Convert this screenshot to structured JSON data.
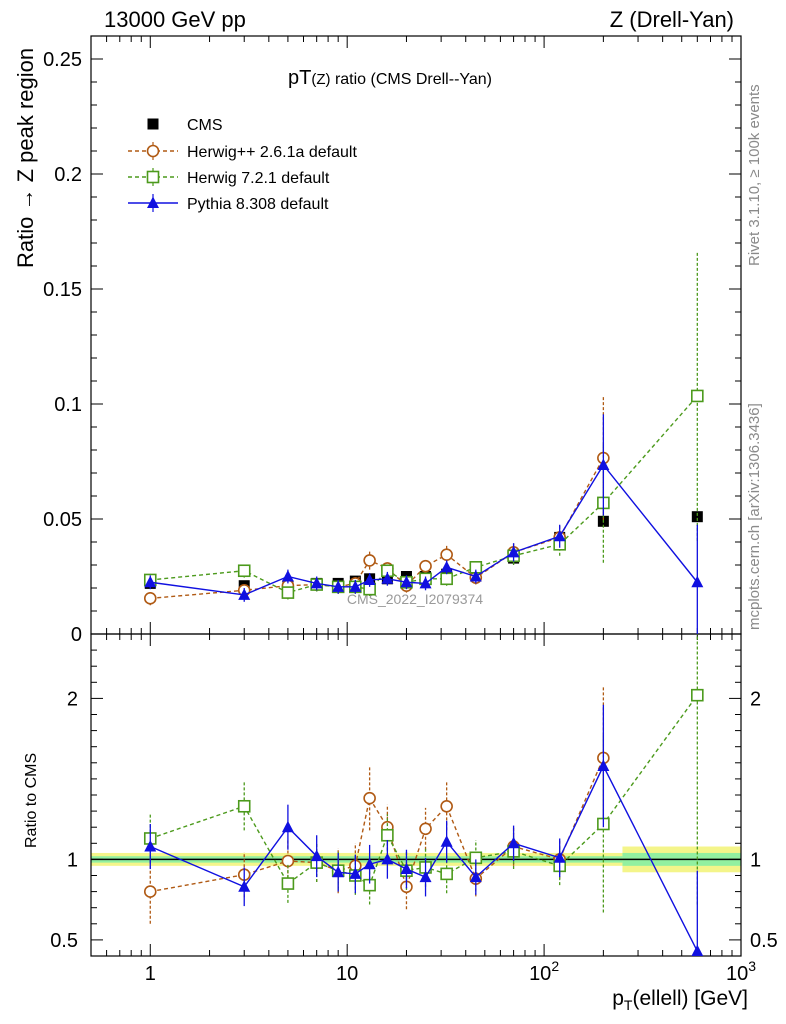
{
  "header": {
    "left": "13000 GeV pp",
    "right": "Z (Drell-Yan)"
  },
  "side_text": {
    "rivet": "Rivet 3.1.10, ≥ 100k events",
    "source": "mcplots.cern.ch [arXiv:1306.3436]"
  },
  "chart_data": {
    "type": "scatter",
    "title_main": "pT",
    "title_paren": "(Z)",
    "title_rest": " ratio (CMS Drell--Yan)",
    "watermark": "CMS_2022_I2079374",
    "xlabel_main": "p",
    "xlabel_sub": "T",
    "xlabel_rest": "(ellell) [GeV]",
    "ylabel_top": "Ratio → Z peak region",
    "ylabel_ratio": "Ratio to CMS",
    "xscale": "log",
    "xlim": [
      0.5,
      1000
    ],
    "ylim_top": [
      0,
      0.26
    ],
    "ylim_ratio": [
      0.4,
      2.4
    ],
    "x_ticks": [
      {
        "value": 1,
        "label": "1"
      },
      {
        "value": 10,
        "label": "10"
      },
      {
        "value": 100,
        "label": "10",
        "exp": "2"
      },
      {
        "value": 1000,
        "label": "10",
        "exp": "3"
      }
    ],
    "y_ticks_top": [
      {
        "value": 0,
        "label": "0"
      },
      {
        "value": 0.05,
        "label": "0.05"
      },
      {
        "value": 0.1,
        "label": "0.1"
      },
      {
        "value": 0.15,
        "label": "0.15"
      },
      {
        "value": 0.2,
        "label": "0.2"
      },
      {
        "value": 0.25,
        "label": "0.25"
      }
    ],
    "y_ticks_ratio": [
      {
        "value": 0.5,
        "label": "0.5"
      },
      {
        "value": 1,
        "label": "1"
      },
      {
        "value": 2,
        "label": "2"
      }
    ],
    "legend_position": "top-left",
    "series": [
      {
        "name": "CMS",
        "marker": "square-filled",
        "color": "#000000",
        "line": "none",
        "x": [
          1,
          3,
          5,
          7,
          9,
          11,
          13,
          16,
          20,
          25,
          32,
          45,
          70,
          120,
          200,
          600
        ],
        "y": [
          0.022,
          0.021,
          0.021,
          0.022,
          0.022,
          0.023,
          0.024,
          0.024,
          0.025,
          0.025,
          0.026,
          0.028,
          0.033,
          0.042,
          0.049,
          0.051
        ],
        "err": [
          0.002,
          0.002,
          0.002,
          0.002,
          0.002,
          0.002,
          0.002,
          0.002,
          0.002,
          0.002,
          0.002,
          0.002,
          0.002,
          0.002,
          0.002,
          0.002
        ],
        "ratio_band": [
          {
            "x0": 0.5,
            "x1": 250,
            "inner": 0.02,
            "outer": 0.04
          },
          {
            "x0": 250,
            "x1": 1000,
            "inner": 0.04,
            "outer": 0.08
          }
        ]
      },
      {
        "name": "Herwig++ 2.6.1a default",
        "marker": "circle-open",
        "color": "#b05a14",
        "line": "dashed",
        "x": [
          1,
          3,
          5,
          7,
          9,
          11,
          13,
          16,
          20,
          25,
          32,
          45,
          70,
          120,
          200
        ],
        "y": [
          0.0155,
          0.019,
          0.021,
          0.0215,
          0.0205,
          0.022,
          0.032,
          0.0285,
          0.021,
          0.0295,
          0.0345,
          0.0245,
          0.0355,
          0.042,
          0.0765
        ],
        "err": [
          0.003,
          0.003,
          0.003,
          0.003,
          0.003,
          0.003,
          0.004,
          0.003,
          0.003,
          0.003,
          0.004,
          0.003,
          0.004,
          0.005,
          0.027
        ],
        "ratio": [
          0.8,
          0.905,
          0.99,
          0.98,
          0.93,
          0.96,
          1.38,
          1.2,
          0.83,
          1.19,
          1.33,
          0.88,
          1.08,
          1.0,
          1.63
        ],
        "ratio_err": [
          0.2,
          0.14,
          0.14,
          0.12,
          0.14,
          0.14,
          0.2,
          0.14,
          0.14,
          0.13,
          0.15,
          0.11,
          0.12,
          0.12,
          0.45
        ]
      },
      {
        "name": "Herwig 7.2.1 default",
        "marker": "square-open",
        "color": "#4c9a1c",
        "line": "dashed",
        "x": [
          1,
          3,
          5,
          7,
          9,
          11,
          13,
          16,
          20,
          25,
          32,
          45,
          70,
          120,
          200,
          600
        ],
        "y": [
          0.0235,
          0.0275,
          0.018,
          0.0215,
          0.0205,
          0.0205,
          0.0195,
          0.0275,
          0.0225,
          0.024,
          0.024,
          0.029,
          0.034,
          0.039,
          0.057,
          0.1035
        ],
        "err": [
          0.003,
          0.003,
          0.003,
          0.003,
          0.003,
          0.003,
          0.003,
          0.003,
          0.003,
          0.003,
          0.003,
          0.003,
          0.004,
          0.005,
          0.026,
          0.063
        ],
        "ratio": [
          1.13,
          1.33,
          0.85,
          0.98,
          0.93,
          0.9,
          0.84,
          1.15,
          0.93,
          0.95,
          0.91,
          1.01,
          1.05,
          0.96,
          1.22,
          2.02
        ],
        "ratio_err": [
          0.15,
          0.15,
          0.12,
          0.12,
          0.12,
          0.12,
          0.12,
          0.13,
          0.12,
          0.12,
          0.12,
          0.11,
          0.11,
          0.12,
          0.55,
          1.3
        ]
      },
      {
        "name": "Pythia 8.308 default",
        "marker": "triangle-filled",
        "color": "#1010e0",
        "line": "solid",
        "x": [
          1,
          3,
          5,
          7,
          9,
          11,
          13,
          16,
          20,
          25,
          32,
          45,
          70,
          120,
          200,
          600
        ],
        "y": [
          0.0225,
          0.017,
          0.025,
          0.022,
          0.0205,
          0.0205,
          0.0235,
          0.024,
          0.0225,
          0.022,
          0.029,
          0.025,
          0.0355,
          0.0425,
          0.0735,
          0.0225
        ],
        "err": [
          0.003,
          0.003,
          0.003,
          0.003,
          0.003,
          0.003,
          0.003,
          0.003,
          0.003,
          0.003,
          0.003,
          0.003,
          0.004,
          0.005,
          0.022,
          0.025
        ],
        "ratio": [
          1.08,
          0.83,
          1.2,
          1.02,
          0.92,
          0.91,
          0.97,
          1.0,
          0.94,
          0.89,
          1.11,
          0.89,
          1.1,
          1.01,
          1.58,
          0.43
        ],
        "ratio_err": [
          0.14,
          0.12,
          0.14,
          0.13,
          0.12,
          0.12,
          0.12,
          0.12,
          0.12,
          0.12,
          0.13,
          0.11,
          0.11,
          0.12,
          0.38,
          0.5
        ]
      }
    ]
  }
}
